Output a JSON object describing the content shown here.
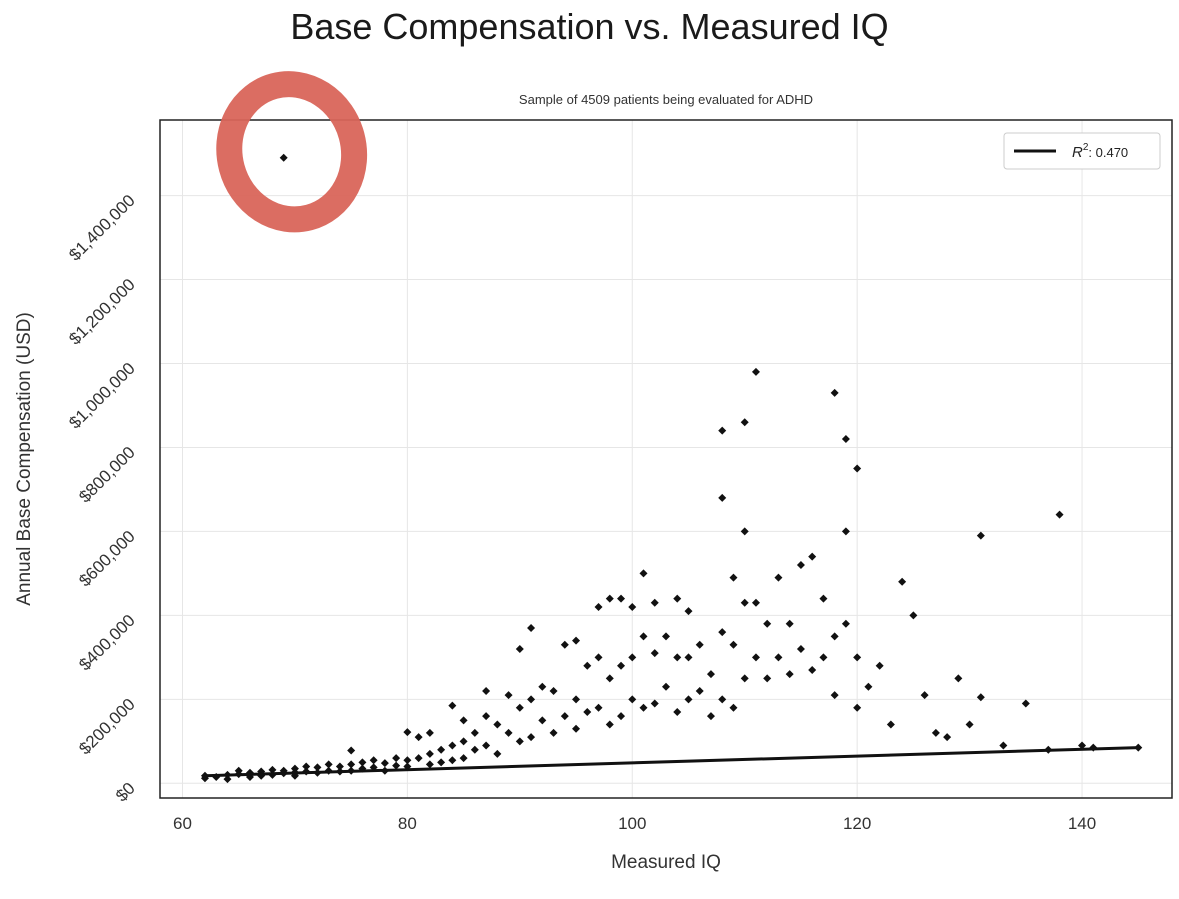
{
  "chart_data": {
    "type": "scatter",
    "title": "Base Compensation vs. Measured IQ",
    "subtitle": "Sample of 4509 patients being evaluated for ADHD",
    "xlabel": "Measured IQ",
    "ylabel": "Annual Base Compensation (USD)",
    "xlim": [
      58,
      148
    ],
    "ylim": [
      -35000,
      1580000
    ],
    "x_ticks": [
      60,
      80,
      100,
      120,
      140
    ],
    "x_tick_labels": [
      "60",
      "80",
      "100",
      "120",
      "140"
    ],
    "y_ticks": [
      0,
      200000,
      400000,
      600000,
      800000,
      1000000,
      1200000,
      1400000
    ],
    "y_tick_labels": [
      "$0",
      "$200,000",
      "$400,000",
      "$600,000",
      "$800,000",
      "$1,000,000",
      "$1,200,000",
      "$1,400,000"
    ],
    "grid": true,
    "legend": {
      "label_main": "R",
      "label_sup": "2",
      "label_value": ": 0.470",
      "placement": "top-right"
    },
    "trendline": {
      "x": [
        62,
        145
      ],
      "y": [
        18000,
        85000
      ]
    },
    "outlier_highlight": {
      "x": 69,
      "y": 1490000,
      "color": "#d9655a"
    },
    "series": [
      {
        "points": [
          [
            62,
            12000
          ],
          [
            62,
            18000
          ],
          [
            63,
            15000
          ],
          [
            64,
            20000
          ],
          [
            64,
            10000
          ],
          [
            65,
            30000
          ],
          [
            65,
            22000
          ],
          [
            66,
            25000
          ],
          [
            66,
            15000
          ],
          [
            67,
            28000
          ],
          [
            67,
            18000
          ],
          [
            68,
            32000
          ],
          [
            68,
            20000
          ],
          [
            69,
            30000
          ],
          [
            69,
            24000
          ],
          [
            69,
            1490000
          ],
          [
            70,
            35000
          ],
          [
            70,
            26000
          ],
          [
            70,
            18000
          ],
          [
            71,
            40000
          ],
          [
            71,
            28000
          ],
          [
            72,
            38000
          ],
          [
            72,
            25000
          ],
          [
            73,
            45000
          ],
          [
            73,
            30000
          ],
          [
            74,
            40000
          ],
          [
            74,
            28000
          ],
          [
            75,
            78000
          ],
          [
            75,
            45000
          ],
          [
            75,
            30000
          ],
          [
            76,
            50000
          ],
          [
            76,
            35000
          ],
          [
            77,
            55000
          ],
          [
            77,
            38000
          ],
          [
            78,
            48000
          ],
          [
            78,
            30000
          ],
          [
            79,
            60000
          ],
          [
            79,
            42000
          ],
          [
            80,
            122000
          ],
          [
            80,
            55000
          ],
          [
            80,
            40000
          ],
          [
            81,
            110000
          ],
          [
            81,
            60000
          ],
          [
            82,
            120000
          ],
          [
            82,
            70000
          ],
          [
            82,
            45000
          ],
          [
            83,
            80000
          ],
          [
            83,
            50000
          ],
          [
            84,
            185000
          ],
          [
            84,
            90000
          ],
          [
            84,
            55000
          ],
          [
            85,
            150000
          ],
          [
            85,
            100000
          ],
          [
            85,
            60000
          ],
          [
            86,
            120000
          ],
          [
            86,
            80000
          ],
          [
            87,
            220000
          ],
          [
            87,
            160000
          ],
          [
            87,
            90000
          ],
          [
            88,
            140000
          ],
          [
            88,
            70000
          ],
          [
            89,
            210000
          ],
          [
            89,
            120000
          ],
          [
            90,
            320000
          ],
          [
            90,
            180000
          ],
          [
            90,
            100000
          ],
          [
            91,
            370000
          ],
          [
            91,
            200000
          ],
          [
            91,
            110000
          ],
          [
            92,
            230000
          ],
          [
            92,
            150000
          ],
          [
            93,
            220000
          ],
          [
            93,
            120000
          ],
          [
            94,
            330000
          ],
          [
            94,
            160000
          ],
          [
            95,
            340000
          ],
          [
            95,
            200000
          ],
          [
            95,
            130000
          ],
          [
            96,
            280000
          ],
          [
            96,
            170000
          ],
          [
            97,
            420000
          ],
          [
            97,
            300000
          ],
          [
            97,
            180000
          ],
          [
            98,
            440000
          ],
          [
            98,
            250000
          ],
          [
            98,
            140000
          ],
          [
            99,
            440000
          ],
          [
            99,
            280000
          ],
          [
            99,
            160000
          ],
          [
            100,
            420000
          ],
          [
            100,
            300000
          ],
          [
            100,
            200000
          ],
          [
            101,
            500000
          ],
          [
            101,
            350000
          ],
          [
            101,
            180000
          ],
          [
            102,
            430000
          ],
          [
            102,
            310000
          ],
          [
            102,
            190000
          ],
          [
            103,
            350000
          ],
          [
            103,
            230000
          ],
          [
            104,
            440000
          ],
          [
            104,
            300000
          ],
          [
            104,
            170000
          ],
          [
            105,
            410000
          ],
          [
            105,
            300000
          ],
          [
            105,
            200000
          ],
          [
            106,
            330000
          ],
          [
            106,
            220000
          ],
          [
            107,
            260000
          ],
          [
            107,
            160000
          ],
          [
            108,
            840000
          ],
          [
            108,
            680000
          ],
          [
            108,
            360000
          ],
          [
            108,
            200000
          ],
          [
            109,
            490000
          ],
          [
            109,
            330000
          ],
          [
            109,
            180000
          ],
          [
            110,
            860000
          ],
          [
            110,
            600000
          ],
          [
            110,
            430000
          ],
          [
            110,
            250000
          ],
          [
            111,
            980000
          ],
          [
            111,
            430000
          ],
          [
            111,
            300000
          ],
          [
            112,
            380000
          ],
          [
            112,
            250000
          ],
          [
            113,
            490000
          ],
          [
            113,
            300000
          ],
          [
            114,
            380000
          ],
          [
            114,
            260000
          ],
          [
            115,
            520000
          ],
          [
            115,
            320000
          ],
          [
            116,
            540000
          ],
          [
            116,
            270000
          ],
          [
            117,
            440000
          ],
          [
            117,
            300000
          ],
          [
            118,
            930000
          ],
          [
            118,
            350000
          ],
          [
            118,
            210000
          ],
          [
            119,
            820000
          ],
          [
            119,
            600000
          ],
          [
            119,
            380000
          ],
          [
            120,
            750000
          ],
          [
            120,
            300000
          ],
          [
            120,
            180000
          ],
          [
            121,
            230000
          ],
          [
            122,
            280000
          ],
          [
            123,
            140000
          ],
          [
            124,
            480000
          ],
          [
            125,
            400000
          ],
          [
            126,
            210000
          ],
          [
            127,
            120000
          ],
          [
            128,
            110000
          ],
          [
            129,
            250000
          ],
          [
            130,
            140000
          ],
          [
            131,
            590000
          ],
          [
            131,
            205000
          ],
          [
            133,
            90000
          ],
          [
            135,
            190000
          ],
          [
            137,
            80000
          ],
          [
            138,
            640000
          ],
          [
            140,
            90000
          ],
          [
            141,
            85000
          ],
          [
            145,
            85000
          ]
        ]
      }
    ]
  }
}
